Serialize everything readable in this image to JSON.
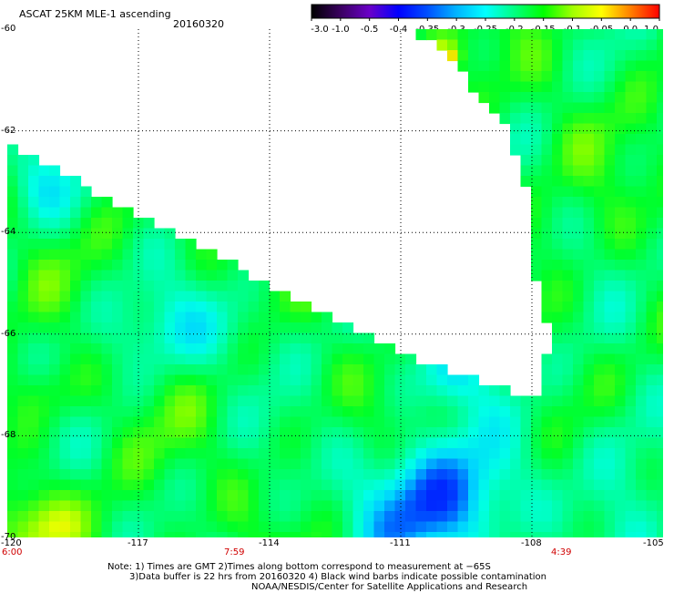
{
  "header": {
    "title": "ASCAT 25KM MLE-1 ascending",
    "date": "20160320"
  },
  "colorbar": {
    "labels": [
      "-3.0",
      "-1.0",
      "-0.5",
      "-0.4",
      "-0.35",
      "-0.3",
      "-0.25",
      "-0.2",
      "-0.15",
      "-0.1",
      "-0.05",
      "0.0",
      "1.0"
    ]
  },
  "chart_data": {
    "type": "heatmap",
    "title": "ASCAT 25KM MLE-1 ascending",
    "date": "20160320",
    "xlim": [
      -120,
      -105
    ],
    "ylim": [
      -70,
      -60
    ],
    "x_ticks": [
      "-120",
      "-117",
      "-114",
      "-111",
      "-108",
      "-105"
    ],
    "y_ticks": [
      "-60",
      "-62",
      "-64",
      "-66",
      "-68",
      "-70"
    ],
    "colorbar_ticks": [
      -3.0,
      -1.0,
      -0.5,
      -0.4,
      -0.35,
      -0.3,
      -0.25,
      -0.2,
      -0.15,
      -0.1,
      -0.05,
      0.0,
      1.0
    ],
    "grid": true,
    "time_labels": [
      "6:00",
      "7:59",
      "4:39"
    ]
  },
  "notes": {
    "line1": "Note: 1) Times are GMT 2)Times along bottom correspond to measurement at −65S",
    "line2": "3)Data buffer is 22 hrs from 20160320 4) Black wind barbs indicate possible contamination",
    "line3": "NOAA/NESDIS/Center for Satellite Applications and Research"
  },
  "colors": {
    "background": "#ffffff",
    "time_label": "#d00000",
    "colormap": [
      "#000000",
      "#3a0060",
      "#6a00c8",
      "#0000ff",
      "#0050ff",
      "#00b4ff",
      "#00ffff",
      "#00ff80",
      "#00ff00",
      "#a0ff00",
      "#ffff00",
      "#ff8000",
      "#ff0000"
    ]
  }
}
